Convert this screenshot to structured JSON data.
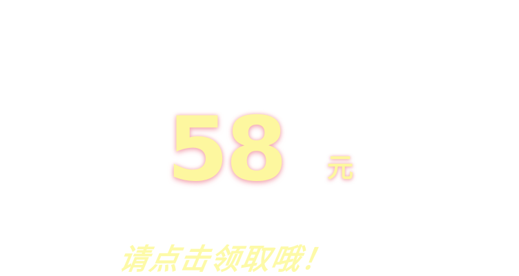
{
  "coupon": {
    "amount": "58",
    "unit": "元"
  },
  "cta": {
    "label": "请点击领取哦！"
  },
  "colors": {
    "background": "#ffffff",
    "text_yellow": "#fdf79f",
    "glow_pink": "#ec788c"
  }
}
